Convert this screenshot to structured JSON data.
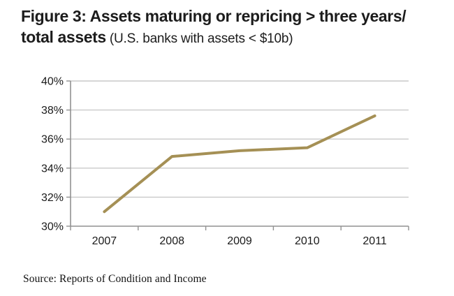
{
  "title": {
    "line1": "Figure 3: Assets maturing or repricing > three years/",
    "line2_main": "total assets",
    "line2_sub": " (U.S. banks with assets < $10b)"
  },
  "source": {
    "text": "Source: Reports of Condition and Income"
  },
  "chart_data": {
    "type": "line",
    "title": "Figure 3: Assets maturing or repricing > three years/total assets (U.S. banks with assets < $10b)",
    "categories": [
      "2007",
      "2008",
      "2009",
      "2010",
      "2011"
    ],
    "values": [
      31.0,
      34.8,
      35.2,
      35.4,
      37.6
    ],
    "xlabel": "",
    "ylabel": "",
    "ylim": [
      30,
      40
    ],
    "y_ticks": [
      {
        "value": 30,
        "label": "30%"
      },
      {
        "value": 32,
        "label": "32%"
      },
      {
        "value": 34,
        "label": "34%"
      },
      {
        "value": 36,
        "label": "36%"
      },
      {
        "value": 38,
        "label": "38%"
      },
      {
        "value": 40,
        "label": "40%"
      }
    ],
    "grid": "horizontal",
    "legend": "none",
    "colors": {
      "line": "#a59055",
      "gridline": "#c9c9c9",
      "axis": "#919191",
      "tick_label": "#1a1a1a"
    }
  }
}
